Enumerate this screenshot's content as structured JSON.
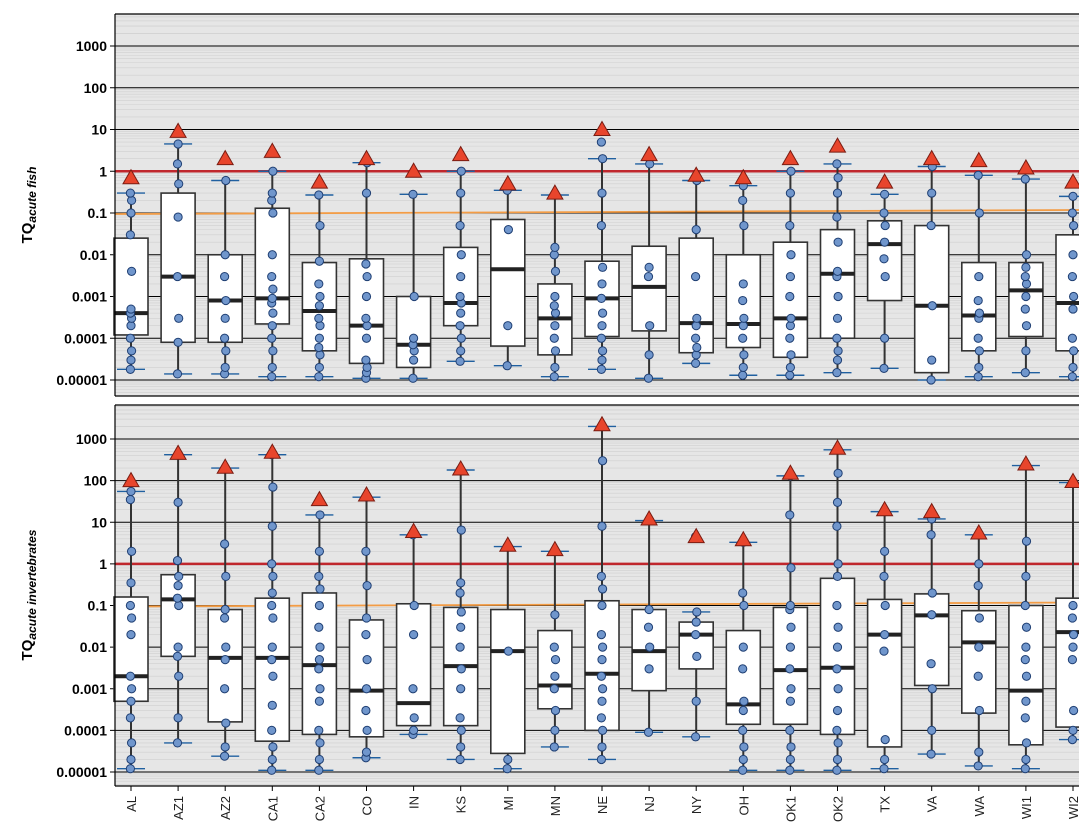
{
  "colors": {
    "panel_bg": "#e6e6e6",
    "minor_grid": "#d0d0d0",
    "major_grid": "#000000",
    "threshold_1": "#c0272d",
    "threshold_01": "#f39c45",
    "point_fill": "#7096cc",
    "point_stroke": "#1f3f73",
    "triangle_fill": "#e8452c",
    "triangle_stroke": "#7a1c12",
    "whisker_cap": "#2060a0",
    "box_fill": "#ffffff"
  },
  "chart_data": [
    {
      "type": "box",
      "panel": "top",
      "ylabel_main": "TQ",
      "ylabel_sub": "acute fish",
      "yscale": "log",
      "ylim": [
        5e-06,
        6000
      ],
      "yticks": [
        "0.00001",
        "0.0001",
        "0.001",
        "0.01",
        "0.1",
        "1",
        "10",
        "100",
        "1000"
      ],
      "thresholds": [
        1,
        0.1
      ],
      "sites": [
        {
          "site": "AL",
          "q1": 0.00012,
          "median": 0.0004,
          "q3": 0.025,
          "wlo": 1.8e-05,
          "whi": 0.3,
          "max": 0.7,
          "points": [
            1.8e-05,
            3e-05,
            5e-05,
            0.0001,
            0.0002,
            0.0003,
            0.0004,
            0.0005,
            0.004,
            0.03,
            0.1,
            0.2,
            0.3
          ]
        },
        {
          "site": "AZ1",
          "q1": 8e-05,
          "median": 0.003,
          "q3": 0.3,
          "wlo": 1.4e-05,
          "whi": 4.5,
          "max": 9.0,
          "points": [
            1.4e-05,
            8e-05,
            0.0003,
            0.003,
            0.08,
            0.5,
            1.5,
            4.5
          ]
        },
        {
          "site": "AZ2",
          "q1": 8e-05,
          "median": 0.0008,
          "q3": 0.01,
          "wlo": 1.4e-05,
          "whi": 0.6,
          "max": 2.0,
          "points": [
            1.4e-05,
            2e-05,
            5e-05,
            0.0001,
            0.0003,
            0.0008,
            0.003,
            0.01,
            0.6
          ]
        },
        {
          "site": "CA1",
          "q1": 0.00022,
          "median": 0.0009,
          "q3": 0.13,
          "wlo": 1.2e-05,
          "whi": 1.0,
          "max": 3.0,
          "points": [
            1.2e-05,
            2e-05,
            5e-05,
            0.0001,
            0.0002,
            0.0004,
            0.0007,
            0.0009,
            0.0015,
            0.003,
            0.01,
            0.1,
            0.2,
            0.3,
            1.0
          ]
        },
        {
          "site": "CA2",
          "q1": 5e-05,
          "median": 0.00045,
          "q3": 0.0065,
          "wlo": 1.2e-05,
          "whi": 0.27,
          "max": 0.55,
          "points": [
            1.2e-05,
            2e-05,
            4e-05,
            6e-05,
            0.0001,
            0.0002,
            0.0003,
            0.0006,
            0.001,
            0.002,
            0.007,
            0.05,
            0.27
          ]
        },
        {
          "site": "CO",
          "q1": 2.5e-05,
          "median": 0.0002,
          "q3": 0.008,
          "wlo": 1.1e-05,
          "whi": 1.6,
          "max": 2.0,
          "points": [
            1.1e-05,
            1.5e-05,
            2e-05,
            3e-05,
            0.0001,
            0.0002,
            0.0003,
            0.001,
            0.003,
            0.006,
            0.3,
            1.6
          ]
        },
        {
          "site": "IN",
          "q1": 2e-05,
          "median": 7e-05,
          "q3": 0.001,
          "wlo": 1.1e-05,
          "whi": 0.28,
          "max": 1.0,
          "points": [
            1.1e-05,
            3e-05,
            5e-05,
            7e-05,
            0.0001,
            0.001,
            0.28
          ]
        },
        {
          "site": "KS",
          "q1": 0.0002,
          "median": 0.0007,
          "q3": 0.015,
          "wlo": 2.8e-05,
          "whi": 1.0,
          "max": 2.5,
          "points": [
            2.8e-05,
            5e-05,
            0.0001,
            0.0002,
            0.0004,
            0.0007,
            0.001,
            0.003,
            0.01,
            0.05,
            0.3,
            1.0
          ]
        },
        {
          "site": "MI",
          "q1": 6.5e-05,
          "median": 0.0045,
          "q3": 0.07,
          "wlo": 2.2e-05,
          "whi": 0.35,
          "max": 0.5,
          "points": [
            2.2e-05,
            0.0002,
            0.04,
            0.35
          ]
        },
        {
          "site": "MN",
          "q1": 4e-05,
          "median": 0.0003,
          "q3": 0.002,
          "wlo": 1.2e-05,
          "whi": 0.27,
          "max": 0.3,
          "points": [
            1.2e-05,
            2e-05,
            5e-05,
            0.0001,
            0.0002,
            0.0004,
            0.0006,
            0.001,
            0.004,
            0.01,
            0.015,
            0.27
          ]
        },
        {
          "site": "NE",
          "q1": 0.00011,
          "median": 0.0009,
          "q3": 0.007,
          "wlo": 1.8e-05,
          "whi": 2.0,
          "max": 10.0,
          "points": [
            1.8e-05,
            3e-05,
            5e-05,
            0.0001,
            0.0002,
            0.0004,
            0.0009,
            0.002,
            0.005,
            0.05,
            0.3,
            2.0,
            5.0
          ]
        },
        {
          "site": "NJ",
          "q1": 0.00015,
          "median": 0.0017,
          "q3": 0.016,
          "wlo": 1.1e-05,
          "whi": 1.5,
          "max": 2.5,
          "points": [
            1.1e-05,
            4e-05,
            0.0002,
            0.003,
            0.005,
            1.5
          ]
        },
        {
          "site": "NY",
          "q1": 4.5e-05,
          "median": 0.00023,
          "q3": 0.025,
          "wlo": 2.5e-05,
          "whi": 0.6,
          "max": 0.8,
          "points": [
            2.5e-05,
            4e-05,
            6e-05,
            0.0001,
            0.0002,
            0.0003,
            0.003,
            0.04,
            0.6
          ]
        },
        {
          "site": "OH",
          "q1": 6e-05,
          "median": 0.00022,
          "q3": 0.01,
          "wlo": 1.3e-05,
          "whi": 0.45,
          "max": 0.7,
          "points": [
            1.3e-05,
            2e-05,
            4e-05,
            0.0001,
            0.0002,
            0.0003,
            0.0008,
            0.002,
            0.05,
            0.2,
            0.45
          ]
        },
        {
          "site": "OK1",
          "q1": 3.5e-05,
          "median": 0.0003,
          "q3": 0.02,
          "wlo": 1.3e-05,
          "whi": 1.0,
          "max": 2.0,
          "points": [
            1.3e-05,
            2e-05,
            4e-05,
            0.0001,
            0.0002,
            0.0003,
            0.001,
            0.003,
            0.01,
            0.05,
            0.3,
            1.0
          ]
        },
        {
          "site": "OK2",
          "q1": 0.0001,
          "median": 0.0035,
          "q3": 0.04,
          "wlo": 1.5e-05,
          "whi": 1.5,
          "max": 4.0,
          "points": [
            1.5e-05,
            3e-05,
            5e-05,
            0.0001,
            0.0003,
            0.001,
            0.003,
            0.004,
            0.02,
            0.08,
            0.3,
            0.7,
            1.5
          ]
        },
        {
          "site": "TX",
          "q1": 0.0008,
          "median": 0.018,
          "q3": 0.065,
          "wlo": 1.9e-05,
          "whi": 0.28,
          "max": 0.55,
          "points": [
            1.9e-05,
            0.0001,
            0.003,
            0.008,
            0.02,
            0.05,
            0.1,
            0.28
          ]
        },
        {
          "site": "VA",
          "q1": 1.5e-05,
          "median": 0.0006,
          "q3": 0.05,
          "wlo": 1e-05,
          "whi": 1.3,
          "max": 2.0,
          "points": [
            1e-05,
            3e-05,
            0.0006,
            0.05,
            0.3,
            1.3
          ]
        },
        {
          "site": "WA",
          "q1": 5e-05,
          "median": 0.00035,
          "q3": 0.0065,
          "wlo": 1.2e-05,
          "whi": 0.8,
          "max": 1.8,
          "points": [
            1.2e-05,
            2e-05,
            5e-05,
            0.0001,
            0.0003,
            0.0004,
            0.0008,
            0.003,
            0.1,
            0.8
          ]
        },
        {
          "site": "WI1",
          "q1": 0.00011,
          "median": 0.0014,
          "q3": 0.0065,
          "wlo": 1.5e-05,
          "whi": 0.65,
          "max": 1.2,
          "points": [
            1.5e-05,
            5e-05,
            0.0002,
            0.0005,
            0.001,
            0.002,
            0.003,
            0.005,
            0.01,
            0.65
          ]
        },
        {
          "site": "WI2",
          "q1": 5e-05,
          "median": 0.0007,
          "q3": 0.03,
          "wlo": 1.2e-05,
          "whi": 0.25,
          "max": 0.55,
          "points": [
            1.2e-05,
            2e-05,
            5e-05,
            0.0001,
            0.0005,
            0.001,
            0.003,
            0.01,
            0.05,
            0.1,
            0.25
          ]
        }
      ]
    },
    {
      "type": "box",
      "panel": "bottom",
      "ylabel_main": "TQ",
      "ylabel_sub": "acute invertebrates",
      "yscale": "log",
      "ylim": [
        5e-06,
        6000
      ],
      "yticks": [
        "0.00001",
        "0.0001",
        "0.001",
        "0.01",
        "0.1",
        "1",
        "10",
        "100",
        "1000"
      ],
      "thresholds": [
        1,
        0.1
      ],
      "sites": [
        {
          "site": "AL",
          "q1": 0.0005,
          "median": 0.002,
          "q3": 0.16,
          "wlo": 1.2e-05,
          "whi": 55,
          "max": 100,
          "points": [
            1.2e-05,
            2e-05,
            5e-05,
            0.0002,
            0.0005,
            0.001,
            0.002,
            0.02,
            0.05,
            0.1,
            0.35,
            2.0,
            35,
            55
          ]
        },
        {
          "site": "AZ1",
          "q1": 0.006,
          "median": 0.14,
          "q3": 0.55,
          "wlo": 5e-05,
          "whi": 420,
          "max": 450,
          "points": [
            5e-05,
            0.0002,
            0.002,
            0.006,
            0.01,
            0.1,
            0.15,
            0.3,
            0.5,
            1.2,
            30,
            420
          ]
        },
        {
          "site": "AZ2",
          "q1": 0.00016,
          "median": 0.0055,
          "q3": 0.08,
          "wlo": 2.4e-05,
          "whi": 200,
          "max": 210,
          "points": [
            2.4e-05,
            4e-05,
            0.00015,
            0.001,
            0.005,
            0.01,
            0.05,
            0.08,
            0.5,
            3.0,
            200
          ]
        },
        {
          "site": "CA1",
          "q1": 5.5e-05,
          "median": 0.0055,
          "q3": 0.15,
          "wlo": 1.1e-05,
          "whi": 420,
          "max": 480,
          "points": [
            1.1e-05,
            2e-05,
            4e-05,
            0.0001,
            0.0004,
            0.002,
            0.005,
            0.01,
            0.05,
            0.1,
            0.2,
            0.5,
            1.0,
            8.0,
            70,
            420
          ]
        },
        {
          "site": "CA2",
          "q1": 8e-05,
          "median": 0.0037,
          "q3": 0.2,
          "wlo": 1.1e-05,
          "whi": 15,
          "max": 35,
          "points": [
            1.1e-05,
            2e-05,
            5e-05,
            0.0001,
            0.0005,
            0.001,
            0.003,
            0.005,
            0.01,
            0.03,
            0.1,
            0.25,
            0.5,
            2.0,
            15
          ]
        },
        {
          "site": "CO",
          "q1": 7e-05,
          "median": 0.0009,
          "q3": 0.045,
          "wlo": 2.2e-05,
          "whi": 40,
          "max": 45,
          "points": [
            2.2e-05,
            3e-05,
            0.0001,
            0.0003,
            0.001,
            0.005,
            0.02,
            0.05,
            0.3,
            2.0,
            40
          ]
        },
        {
          "site": "IN",
          "q1": 0.00013,
          "median": 0.00045,
          "q3": 0.11,
          "wlo": 8e-05,
          "whi": 5.0,
          "max": 6.0,
          "points": [
            8e-05,
            0.0001,
            0.0002,
            0.001,
            0.02,
            0.1,
            5.0
          ]
        },
        {
          "site": "KS",
          "q1": 0.00013,
          "median": 0.0035,
          "q3": 0.09,
          "wlo": 2e-05,
          "whi": 180,
          "max": 190,
          "points": [
            2e-05,
            4e-05,
            0.0001,
            0.0002,
            0.001,
            0.003,
            0.01,
            0.03,
            0.07,
            0.2,
            0.35,
            6.5,
            180
          ]
        },
        {
          "site": "MI",
          "q1": 2.8e-05,
          "median": 0.008,
          "q3": 0.08,
          "wlo": 1.2e-05,
          "whi": 2.6,
          "max": 2.8,
          "points": [
            1.2e-05,
            2e-05,
            0.008,
            2.6
          ]
        },
        {
          "site": "MN",
          "q1": 0.00033,
          "median": 0.0012,
          "q3": 0.025,
          "wlo": 4e-05,
          "whi": 2.0,
          "max": 2.2,
          "points": [
            4e-05,
            0.0001,
            0.0003,
            0.001,
            0.002,
            0.005,
            0.01,
            0.06,
            2.0
          ]
        },
        {
          "site": "NE",
          "q1": 0.0001,
          "median": 0.0023,
          "q3": 0.13,
          "wlo": 2e-05,
          "whi": 2000,
          "max": 2200,
          "points": [
            2e-05,
            4e-05,
            0.0001,
            0.0002,
            0.0005,
            0.001,
            0.002,
            0.005,
            0.01,
            0.02,
            0.1,
            0.25,
            0.5,
            8.0,
            300,
            2000
          ]
        },
        {
          "site": "NJ",
          "q1": 0.0009,
          "median": 0.008,
          "q3": 0.08,
          "wlo": 9e-05,
          "whi": 11,
          "max": 12,
          "points": [
            9e-05,
            0.003,
            0.01,
            0.03,
            0.08,
            11
          ]
        },
        {
          "site": "NY",
          "q1": 0.003,
          "median": 0.02,
          "q3": 0.04,
          "wlo": 7e-05,
          "whi": 0.07,
          "max": 4.5,
          "points": [
            7e-05,
            0.0005,
            0.006,
            0.02,
            0.04,
            0.07,
            4.5
          ]
        },
        {
          "site": "OH",
          "q1": 0.00014,
          "median": 0.00042,
          "q3": 0.025,
          "wlo": 1.1e-05,
          "whi": 3.3,
          "max": 3.8,
          "points": [
            1.1e-05,
            2e-05,
            4e-05,
            0.0001,
            0.0003,
            0.0005,
            0.003,
            0.01,
            0.1,
            0.2,
            3.3
          ]
        },
        {
          "site": "OK1",
          "q1": 0.00014,
          "median": 0.0028,
          "q3": 0.09,
          "wlo": 1.1e-05,
          "whi": 130,
          "max": 150,
          "points": [
            1.1e-05,
            2e-05,
            4e-05,
            0.0001,
            0.0005,
            0.001,
            0.003,
            0.01,
            0.03,
            0.08,
            0.1,
            0.8,
            15,
            130
          ]
        },
        {
          "site": "OK2",
          "q1": 8e-05,
          "median": 0.0032,
          "q3": 0.45,
          "wlo": 1.1e-05,
          "whi": 550,
          "max": 600,
          "points": [
            1.1e-05,
            2e-05,
            5e-05,
            0.0001,
            0.0003,
            0.001,
            0.003,
            0.01,
            0.03,
            0.1,
            0.5,
            1.0,
            8.0,
            30,
            150,
            550
          ]
        },
        {
          "site": "TX",
          "q1": 4e-05,
          "median": 0.02,
          "q3": 0.14,
          "wlo": 1.2e-05,
          "whi": 18,
          "max": 20,
          "points": [
            1.2e-05,
            2e-05,
            6e-05,
            0.008,
            0.02,
            0.1,
            0.5,
            2.0,
            18
          ]
        },
        {
          "site": "VA",
          "q1": 0.0012,
          "median": 0.058,
          "q3": 0.19,
          "wlo": 2.7e-05,
          "whi": 12,
          "max": 18,
          "points": [
            2.7e-05,
            0.0001,
            0.001,
            0.004,
            0.06,
            0.2,
            5.0,
            12
          ]
        },
        {
          "site": "WA",
          "q1": 0.00026,
          "median": 0.013,
          "q3": 0.075,
          "wlo": 1.4e-05,
          "whi": 5.0,
          "max": 5.5,
          "points": [
            1.4e-05,
            3e-05,
            0.0003,
            0.002,
            0.01,
            0.05,
            0.3,
            1.0,
            5.0
          ]
        },
        {
          "site": "WI1",
          "q1": 4.5e-05,
          "median": 0.0009,
          "q3": 0.1,
          "wlo": 1.2e-05,
          "whi": 230,
          "max": 250,
          "points": [
            1.2e-05,
            2e-05,
            5e-05,
            0.0002,
            0.0005,
            0.002,
            0.005,
            0.01,
            0.03,
            0.1,
            0.5,
            3.5,
            230
          ]
        },
        {
          "site": "WI2",
          "q1": 0.00012,
          "median": 0.023,
          "q3": 0.15,
          "wlo": 6e-05,
          "whi": 90,
          "max": 95,
          "points": [
            6e-05,
            0.0001,
            0.0003,
            0.005,
            0.01,
            0.02,
            0.05,
            0.1,
            90
          ]
        }
      ]
    }
  ]
}
